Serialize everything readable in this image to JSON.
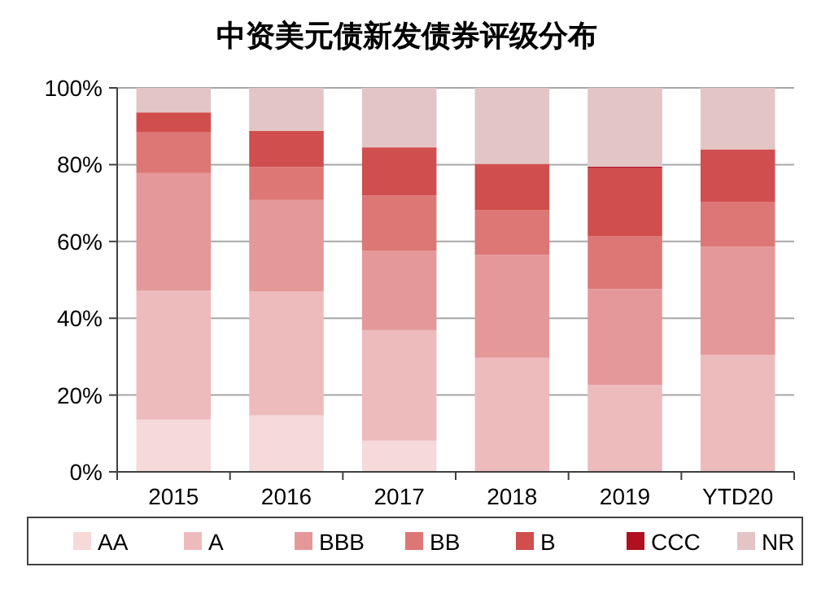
{
  "chart_data": {
    "type": "bar",
    "title": "中资美元债新发债券评级分布",
    "stacked": true,
    "grid": "y",
    "legend": "bottom",
    "categories": [
      "2015",
      "2016",
      "2017",
      "2018",
      "2019",
      "YTD20"
    ],
    "ylim": [
      0,
      100
    ],
    "yticks": [
      {
        "value": 0,
        "label": "0%"
      },
      {
        "value": 20,
        "label": "20%"
      },
      {
        "value": 40,
        "label": "40%"
      },
      {
        "value": 60,
        "label": "60%"
      },
      {
        "value": 80,
        "label": "80%"
      },
      {
        "value": 100,
        "label": "100%"
      }
    ],
    "series": [
      {
        "name": "AA",
        "color": "#f6d9d9",
        "values": [
          13.6,
          14.7,
          8.1,
          0,
          0,
          0
        ]
      },
      {
        "name": "A",
        "color": "#eebbbd",
        "values": [
          33.6,
          32.3,
          28.8,
          29.7,
          22.6,
          30.5
        ]
      },
      {
        "name": "BBB",
        "color": "#e49899",
        "values": [
          30.6,
          23.8,
          20.7,
          26.8,
          25.0,
          28.1
        ]
      },
      {
        "name": "BB",
        "color": "#dc7776",
        "values": [
          10.6,
          8.6,
          14.4,
          11.6,
          13.7,
          11.6
        ]
      },
      {
        "name": "B",
        "color": "#d04e4d",
        "values": [
          5.2,
          9.4,
          12.5,
          12.1,
          17.8,
          13.8
        ]
      },
      {
        "name": "CCC",
        "color": "#b01020",
        "values": [
          0,
          0,
          0,
          0,
          0.4,
          0
        ]
      },
      {
        "name": "NR",
        "color": "#e3c5c5",
        "values": [
          6.4,
          11.2,
          15.5,
          19.8,
          20.5,
          16.0
        ]
      }
    ]
  }
}
